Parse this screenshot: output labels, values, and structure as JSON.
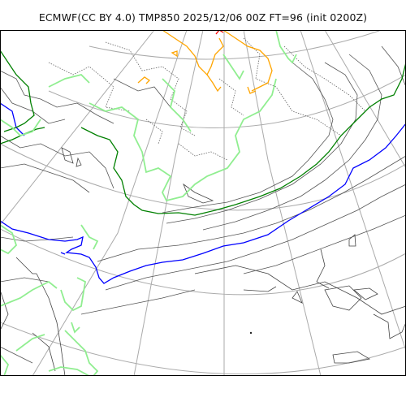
{
  "map": {
    "title": "ECMWF(CC BY 4.0) TMP850 2025/12/06 00Z FT=96 (init 0200Z)",
    "projection": "polar stereographic",
    "graticule": true,
    "colors": {
      "background": "#ffffff",
      "frame": "#000000",
      "coastline": "#444444",
      "graticule": "#aaaaaa",
      "isotherm": "#555555",
      "isotherm_dotted": "#666666",
      "isotherm_green": "#008000",
      "isotherm_light_green": "#90ee90",
      "isotherm_blue": "#0000ff",
      "isotherm_orange": "#ffa500",
      "isotherm_red": "#ff0000"
    }
  }
}
